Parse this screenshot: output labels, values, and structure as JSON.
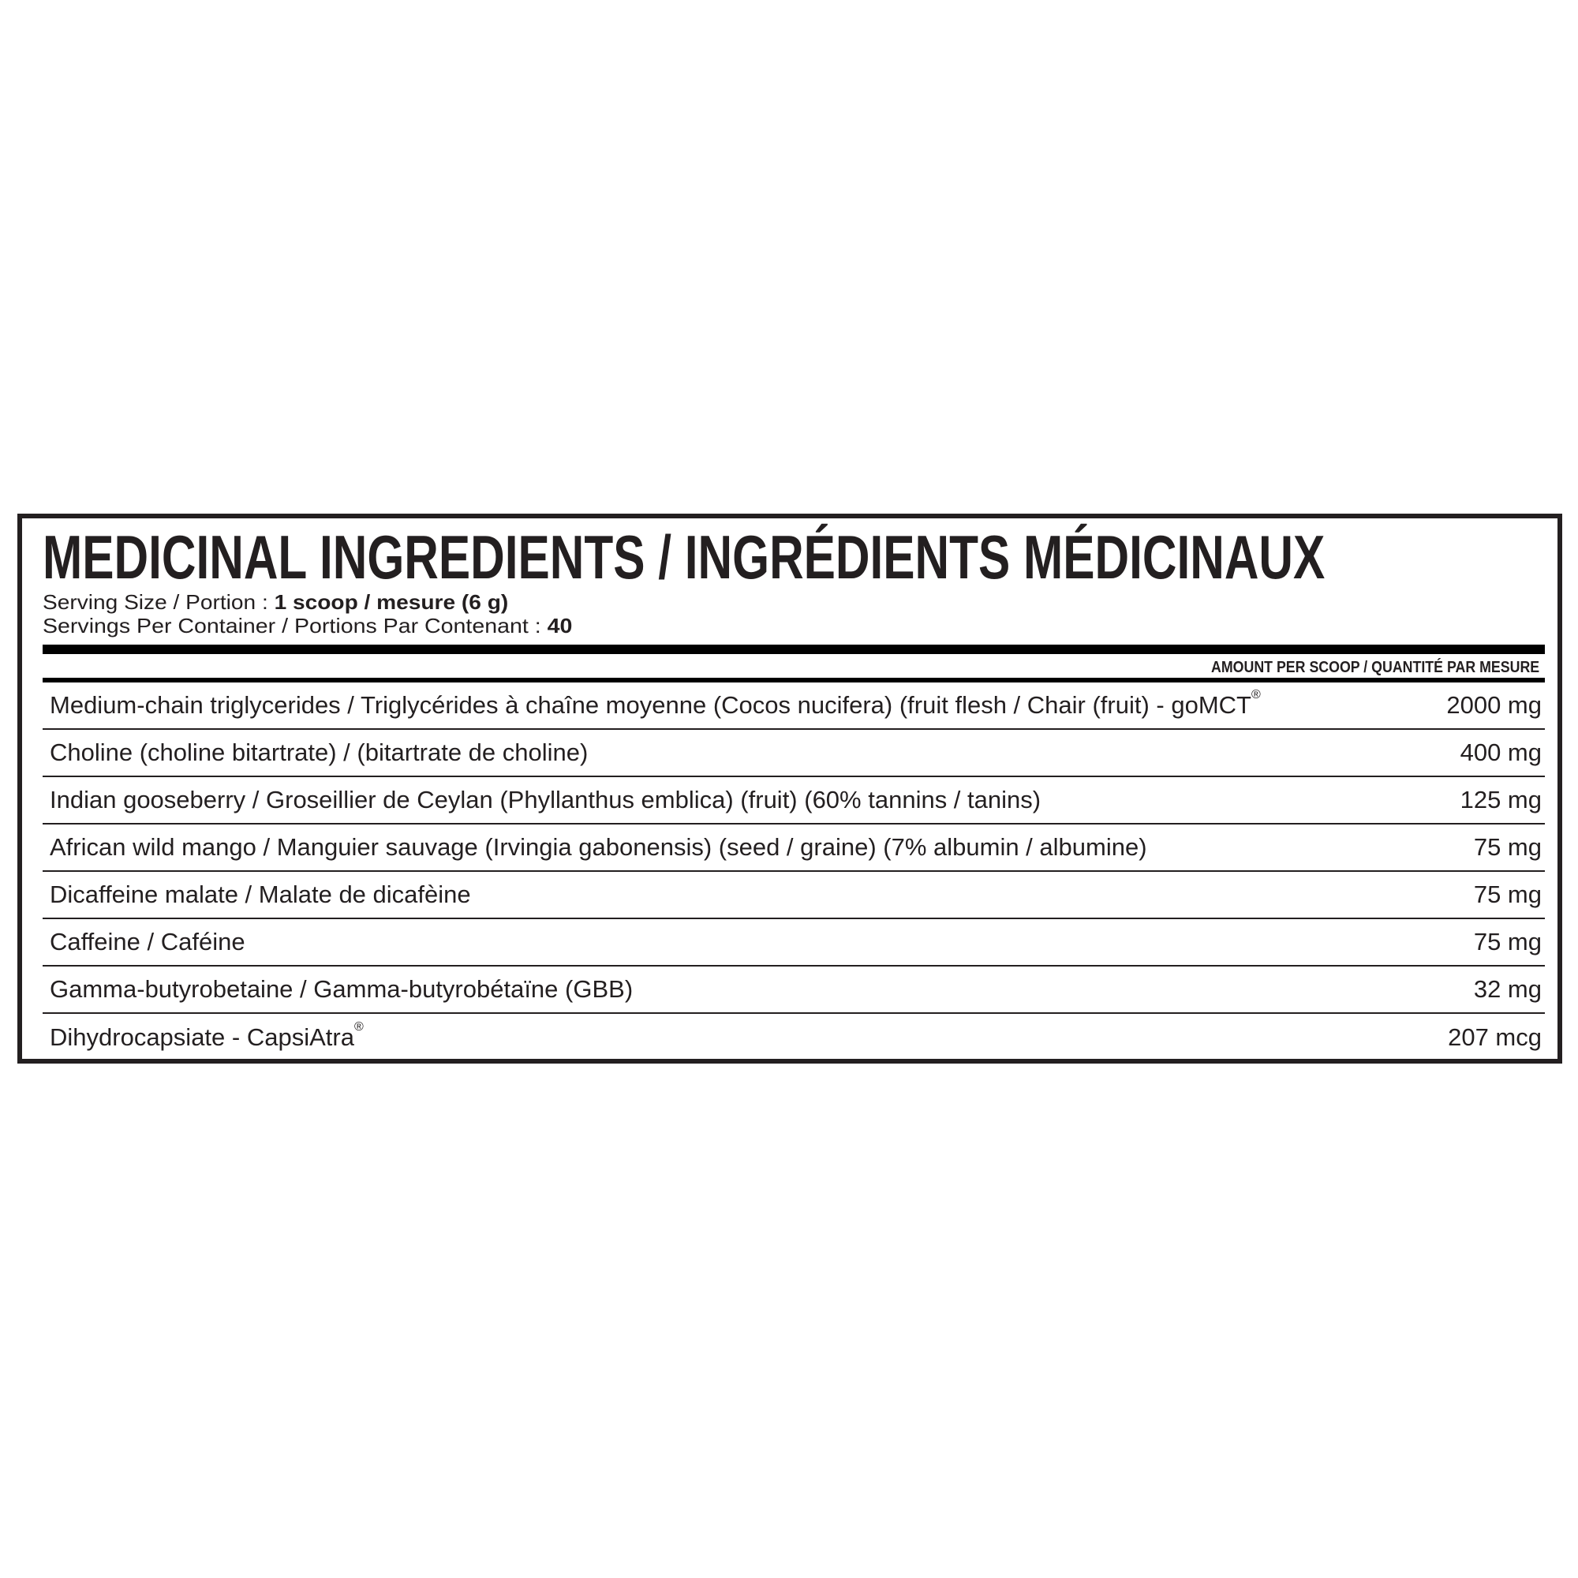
{
  "label": {
    "title": "MEDICINAL INGREDIENTS / INGRÉDIENTS MÉDICINAUX",
    "serving_size_label": "Serving Size / Portion : ",
    "serving_size_value": "1 scoop / mesure (6 g)",
    "servings_label": "Servings Per Container / Portions Par Contenant : ",
    "servings_value": "40",
    "amount_header": "AMOUNT PER SCOOP / QUANTITÉ PAR MESURE",
    "ingredients": [
      {
        "name": "Medium-chain triglycerides / Triglycérides à chaîne moyenne (Cocos nucifera) (fruit flesh / Chair (fruit) - goMCT",
        "mark": "®",
        "amount": "2000 mg"
      },
      {
        "name": "Choline (choline bitartrate) / (bitartrate de choline)",
        "mark": "",
        "amount": "400 mg"
      },
      {
        "name": "Indian gooseberry / Groseillier de Ceylan (Phyllanthus emblica) (fruit) (60% tannins / tanins)",
        "mark": "",
        "amount": "125 mg"
      },
      {
        "name": "African wild mango / Manguier sauvage (Irvingia gabonensis) (seed / graine) (7% albumin / albumine)",
        "mark": "",
        "amount": "75 mg"
      },
      {
        "name": "Dicaffeine malate / Malate de dicafèine",
        "mark": "",
        "amount": "75 mg"
      },
      {
        "name": "Caffeine / Caféine",
        "mark": "",
        "amount": "75 mg"
      },
      {
        "name": "Gamma-butyrobetaine / Gamma-butyrobétaïne (GBB)",
        "mark": "",
        "amount": "32 mg"
      },
      {
        "name": "Dihydrocapsiate - CapsiAtra",
        "mark": "®",
        "amount": "207 mcg"
      }
    ]
  }
}
